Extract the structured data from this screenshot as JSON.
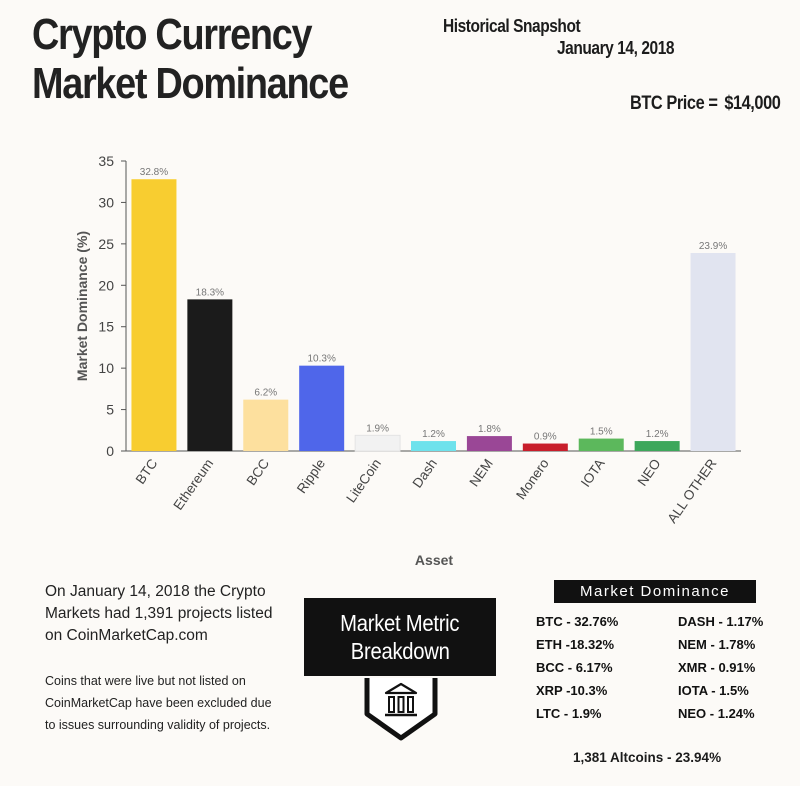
{
  "header": {
    "title_line1": "Crypto Currency",
    "title_line2": "Market Dominance",
    "snapshot_title": "Historical Snapshot",
    "snapshot_date": "January 14, 2018",
    "btc_price_label": "BTC Price =",
    "btc_price_value": "$14,000"
  },
  "chart_data": {
    "type": "bar",
    "title": "",
    "xlabel": "Asset",
    "ylabel": "Market Dominance (%)",
    "ylim": [
      0,
      35
    ],
    "yticks": [
      0,
      5,
      10,
      15,
      20,
      25,
      30,
      35
    ],
    "grid": false,
    "categories": [
      "BTC",
      "Ethereum",
      "BCC",
      "Ripple",
      "LiteCoin",
      "Dash",
      "NEM",
      "Monero",
      "IOTA",
      "NEO",
      "ALL OTHER"
    ],
    "values": [
      32.8,
      18.3,
      6.2,
      10.3,
      1.9,
      1.2,
      1.8,
      0.9,
      1.5,
      1.2,
      23.9
    ],
    "data_labels": [
      "32.8%",
      "18.3%",
      "6.2%",
      "10.3%",
      "1.9%",
      "1.2%",
      "1.8%",
      "0.9%",
      "1.5%",
      "1.2%",
      "23.9%"
    ],
    "colors": [
      "#f8cd30",
      "#1b1b1b",
      "#fde09e",
      "#4f66ea",
      "#f2f2f2",
      "#6ee2ec",
      "#9a4796",
      "#c81e2b",
      "#5cb85c",
      "#3da75b",
      "#e1e4f0"
    ]
  },
  "text": {
    "paragraph1": "On January 14, 2018 the Crypto Markets had 1,391 projects listed on CoinMarketCap.com",
    "paragraph2": "Coins that were live but not listed on CoinMarketCap have been excluded due to issues surrounding validity of projects."
  },
  "metric_box": {
    "line1": "Market Metric",
    "line2": "Breakdown",
    "icon": "building-chart-icon"
  },
  "market_dominance": {
    "header": "Market Dominance",
    "left": [
      "BTC - 32.76%",
      "ETH -18.32%",
      "BCC - 6.17%",
      "XRP -10.3%",
      "LTC - 1.9%"
    ],
    "right": [
      "DASH - 1.17%",
      "NEM - 1.78%",
      "XMR - 0.91%",
      "IOTA - 1.5%",
      "NEO - 1.24%"
    ],
    "altcoins": "1,381 Altcoins - 23.94%"
  }
}
